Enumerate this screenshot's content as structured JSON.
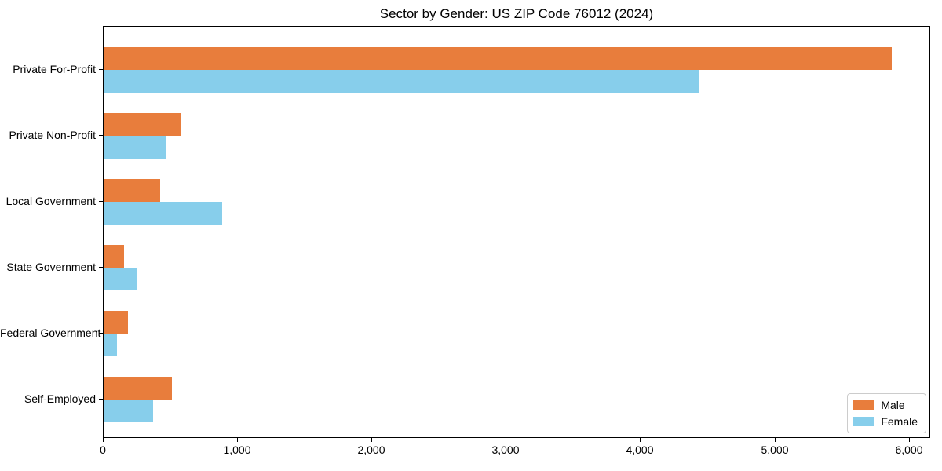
{
  "chart_data": {
    "type": "bar",
    "orientation": "horizontal",
    "title": "Sector by Gender: US ZIP Code 76012 (2024)",
    "categories": [
      "Private For-Profit",
      "Private Non-Profit",
      "Local Government",
      "State Government",
      "Federal Government",
      "Self-Employed"
    ],
    "series": [
      {
        "name": "Male",
        "color": "#e87d3c",
        "values": [
          5870,
          580,
          420,
          150,
          180,
          510
        ]
      },
      {
        "name": "Female",
        "color": "#87ceeb",
        "values": [
          4430,
          470,
          885,
          250,
          100,
          370
        ]
      }
    ],
    "xlabel": "",
    "ylabel": "",
    "xlim": [
      0,
      6160
    ],
    "x_ticks": [
      0,
      1000,
      2000,
      3000,
      4000,
      5000,
      6000
    ],
    "x_tick_labels": [
      "0",
      "1,000",
      "2,000",
      "3,000",
      "4,000",
      "5,000",
      "6,000"
    ],
    "grid": false,
    "legend": {
      "position": "lower right",
      "entries": [
        "Male",
        "Female"
      ]
    },
    "plot_background": "#ffffff",
    "spine_color": "#000000"
  }
}
